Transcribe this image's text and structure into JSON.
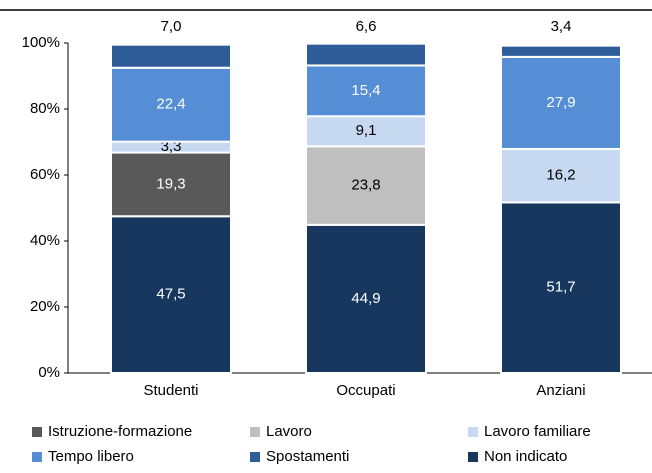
{
  "chart_data": {
    "type": "stacked_bar",
    "categories": [
      "Studenti",
      "Occupati",
      "Anziani"
    ],
    "series": [
      {
        "name": "Istruzione-formazione",
        "color": "#595959",
        "values": [
          19.3,
          null,
          null
        ]
      },
      {
        "name": "Lavoro",
        "color": "#bfbfbf",
        "values": [
          null,
          23.8,
          null
        ]
      },
      {
        "name": "Lavoro familiare",
        "color": "#c6d9f1",
        "values": [
          3.3,
          9.1,
          16.2
        ]
      },
      {
        "name": "Tempo libero",
        "color": "#558ed5",
        "values": [
          22.4,
          15.4,
          27.9
        ]
      },
      {
        "name": "Spostamenti",
        "color": "#2e5c99",
        "values": [
          7.0,
          6.6,
          3.4
        ]
      },
      {
        "name": "Non indicato",
        "color": "#17375e",
        "values": [
          47.5,
          44.9,
          51.7
        ]
      }
    ],
    "value_labels": [
      [
        "19,3",
        null,
        null
      ],
      [
        null,
        "23,8",
        null
      ],
      [
        "3,3",
        "9,1",
        "16,2"
      ],
      [
        "22,4",
        "15,4",
        "27,9"
      ],
      [
        "7,0",
        "6,6",
        "3,4"
      ],
      [
        "47,5",
        "44,9",
        "51,7"
      ]
    ],
    "ylim": [
      0,
      100
    ],
    "yticks": [
      {
        "value": 0,
        "label": "0%"
      },
      {
        "value": 20,
        "label": "20%"
      },
      {
        "value": 40,
        "label": "40%"
      },
      {
        "value": 60,
        "label": "60%"
      },
      {
        "value": 80,
        "label": "80%"
      },
      {
        "value": 100,
        "label": "100%"
      }
    ]
  }
}
